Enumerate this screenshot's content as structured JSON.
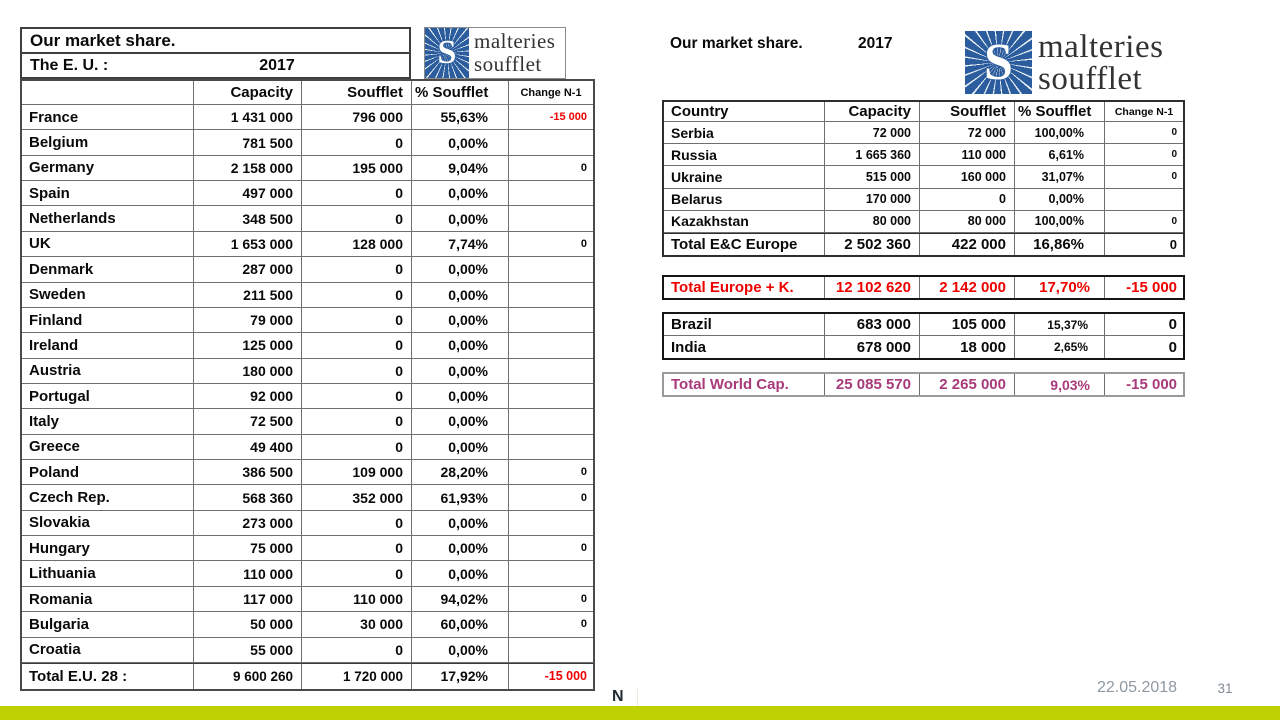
{
  "colors": {
    "accent_bar": "#bed103",
    "logo_blue": "#2b5c9d",
    "negative_red": "#ee0000",
    "world_total_purple": "#a83a7a"
  },
  "logo": {
    "monogram": "S",
    "line1": "malteries",
    "line2": "soufflet"
  },
  "left_table": {
    "title": "Our market share.",
    "subtitle": "The E. U. :",
    "year": "2017",
    "columns": [
      "",
      "Capacity",
      "Soufflet",
      "% Soufflet",
      "Change N-1"
    ],
    "rows": [
      [
        "France",
        "1 431 000",
        "796 000",
        "55,63%",
        "-15 000"
      ],
      [
        "Belgium",
        "781 500",
        "0",
        "0,00%",
        ""
      ],
      [
        "Germany",
        "2 158 000",
        "195 000",
        "9,04%",
        "0"
      ],
      [
        "Spain",
        "497 000",
        "0",
        "0,00%",
        ""
      ],
      [
        "Netherlands",
        "348 500",
        "0",
        "0,00%",
        ""
      ],
      [
        "UK",
        "1 653 000",
        "128 000",
        "7,74%",
        "0"
      ],
      [
        "Denmark",
        "287 000",
        "0",
        "0,00%",
        ""
      ],
      [
        "Sweden",
        "211 500",
        "0",
        "0,00%",
        ""
      ],
      [
        "Finland",
        "79 000",
        "0",
        "0,00%",
        ""
      ],
      [
        "Ireland",
        "125 000",
        "0",
        "0,00%",
        ""
      ],
      [
        "Austria",
        "180 000",
        "0",
        "0,00%",
        ""
      ],
      [
        "Portugal",
        "92 000",
        "0",
        "0,00%",
        ""
      ],
      [
        "Italy",
        "72 500",
        "0",
        "0,00%",
        ""
      ],
      [
        "Greece",
        "49 400",
        "0",
        "0,00%",
        ""
      ],
      [
        "Poland",
        "386 500",
        "109 000",
        "28,20%",
        "0"
      ],
      [
        "Czech Rep.",
        "568 360",
        "352 000",
        "61,93%",
        "0"
      ],
      [
        "Slovakia",
        "273 000",
        "0",
        "0,00%",
        ""
      ],
      [
        "Hungary",
        "75 000",
        "0",
        "0,00%",
        "0"
      ],
      [
        "Lithuania",
        "110 000",
        "0",
        "0,00%",
        ""
      ],
      [
        "Romania",
        "117 000",
        "110 000",
        "94,02%",
        "0"
      ],
      [
        "Bulgaria",
        "50 000",
        "30 000",
        "60,00%",
        "0"
      ],
      [
        "Croatia",
        "55 000",
        "0",
        "0,00%",
        ""
      ]
    ],
    "total_row": [
      "Total E.U. 28 :",
      "9 600 260",
      "1 720 000",
      "17,92%",
      "-15 000"
    ]
  },
  "right_table": {
    "title": "Our market share.",
    "year": "2017",
    "columns": [
      "Country",
      "Capacity",
      "Soufflet",
      "% Soufflet",
      "Change N-1"
    ],
    "rows": [
      [
        "Serbia",
        "72 000",
        "72 000",
        "100,00%",
        "0"
      ],
      [
        "Russia",
        "1 665 360",
        "110 000",
        "6,61%",
        "0"
      ],
      [
        "Ukraine",
        "515 000",
        "160 000",
        "31,07%",
        "0"
      ],
      [
        "Belarus",
        "170 000",
        "0",
        "0,00%",
        ""
      ],
      [
        "Kazakhstan",
        "80 000",
        "80 000",
        "100,00%",
        "0"
      ]
    ],
    "total_row": [
      "Total E&C Europe",
      "2 502 360",
      "422 000",
      "16,86%",
      "0"
    ],
    "europe_total_row": [
      "Total Europe + K.",
      "12 102 620",
      "2 142 000",
      "17,70%",
      "-15 000"
    ],
    "americas_rows": [
      [
        "Brazil",
        "683 000",
        "105 000",
        "15,37%",
        "0"
      ],
      [
        "India",
        "678 000",
        "18 000",
        "2,65%",
        "0"
      ]
    ],
    "world_total_row": [
      "Total World Cap.",
      "25 085 570",
      "2 265 000",
      "9,03%",
      "-15 000"
    ]
  },
  "footer": {
    "stray_letter": "N",
    "date": "22.05.2018",
    "page": "31"
  }
}
